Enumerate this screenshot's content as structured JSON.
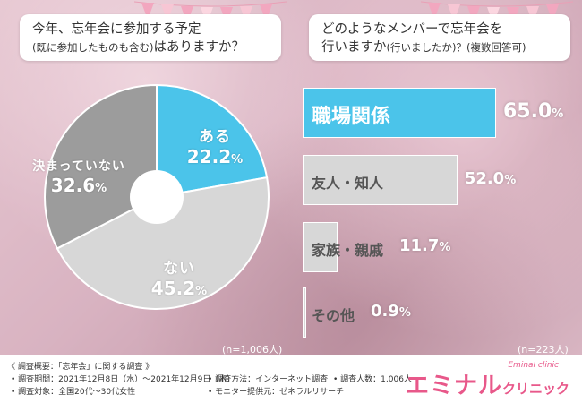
{
  "left_question": {
    "line1": "今年、忘年会に参加する予定",
    "line2_main": "(既に参加したものも含む)",
    "line2_tail": "はありますか？"
  },
  "right_question": {
    "line1": "どのようなメンバーで忘年会を",
    "line2_main": "行いますか",
    "line2_paren": "(行いましたか)？",
    "line2_tail": "(複数回答可)"
  },
  "left_n": "(n=1,006人)",
  "right_n": "(n=223人)",
  "colors": {
    "accent_blue": "#4bc4ea",
    "dark_gray": "#9c9c9c",
    "light_gray": "#d7d7d7",
    "brand_pink": "#e8588a"
  },
  "chart_data": [
    {
      "type": "pie",
      "slices": [
        {
          "label": "ある",
          "value": 22.2,
          "value_text": "22.2",
          "color": "#4bc4ea"
        },
        {
          "label": "ない",
          "value": 45.2,
          "value_text": "45.2",
          "color": "#d7d7d7"
        },
        {
          "label": "決まっていない",
          "value": 32.6,
          "value_text": "32.6",
          "color": "#9c9c9c"
        }
      ],
      "unit": "%"
    },
    {
      "type": "bar",
      "orientation": "horizontal",
      "categories": [
        "職場関係",
        "友人・知人",
        "家族・親戚",
        "その他"
      ],
      "values": [
        65.0,
        52.0,
        11.7,
        0.9
      ],
      "value_texts": [
        "65.0",
        "52.0",
        "11.7",
        "0.9"
      ],
      "unit": "%"
    }
  ],
  "footer": {
    "title": "《 調査概要：「忘年会」に関する調査 》",
    "period": "• 調査期間：2021年12月8日（水）～2021年12月9日（木）",
    "method": "• 調査方法：インターネット調査",
    "people": "• 調査人数：1,006人",
    "target": "• 調査対象：全国20代～30代女性",
    "provider": "• モニター提供元：ゼネラルリサーチ"
  },
  "brand": {
    "main": "エミナル",
    "sub": "クリニック",
    "small": "Eminal clinic"
  }
}
